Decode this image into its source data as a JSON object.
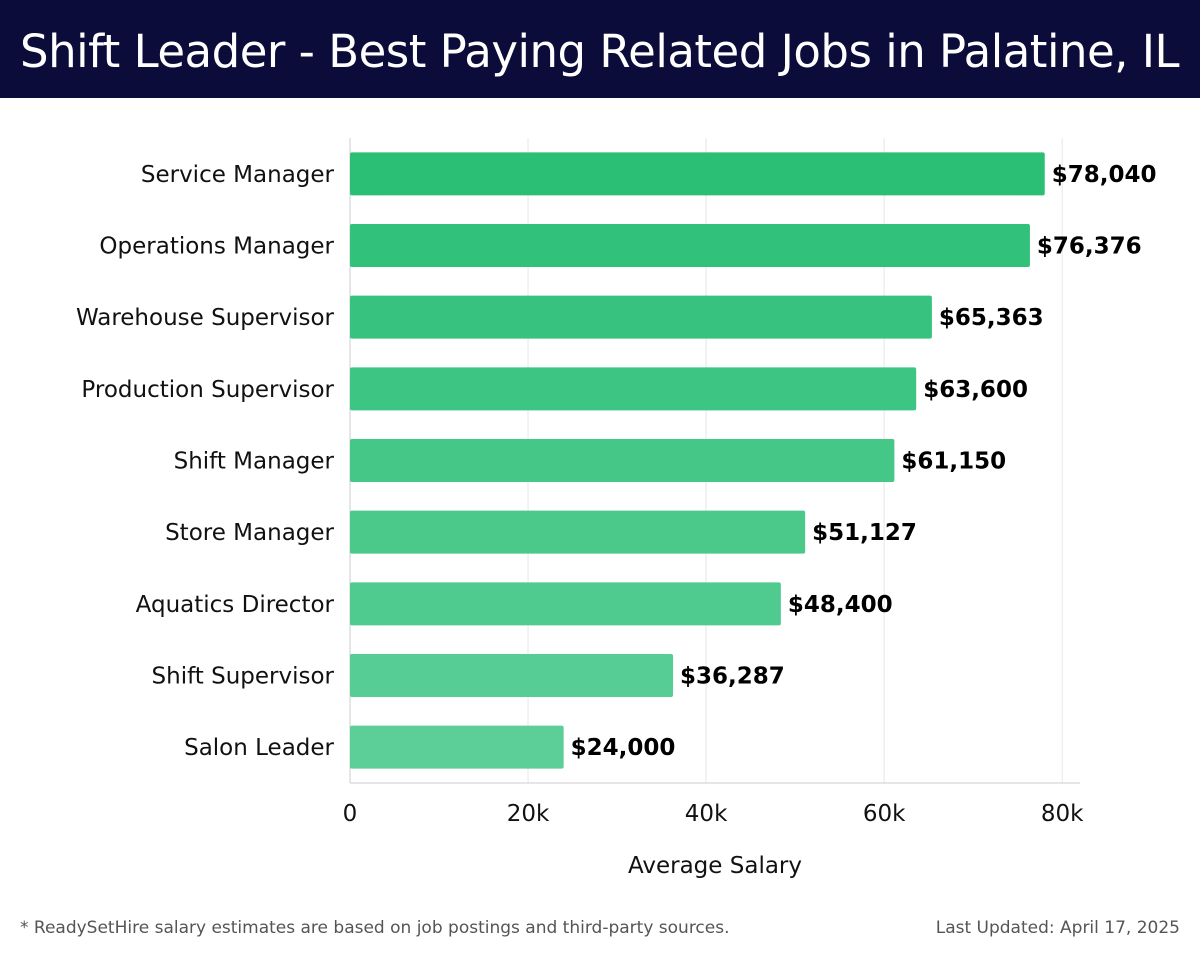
{
  "header": {
    "title": "Shift Leader - Best Paying Related Jobs in Palatine, IL"
  },
  "chart_data": {
    "type": "bar",
    "orientation": "horizontal",
    "categories": [
      "Service Manager",
      "Operations Manager",
      "Warehouse Supervisor",
      "Production Supervisor",
      "Shift Manager",
      "Store Manager",
      "Aquatics Director",
      "Shift Supervisor",
      "Salon Leader"
    ],
    "values": [
      78040,
      76376,
      65363,
      63600,
      61150,
      51127,
      48400,
      36287,
      24000
    ],
    "value_labels": [
      "$78,040",
      "$76,376",
      "$65,363",
      "$63,600",
      "$61,150",
      "$51,127",
      "$48,400",
      "$36,287",
      "$24,000"
    ],
    "xlabel": "Average Salary",
    "ylabel": "",
    "xlim": [
      0,
      82000
    ],
    "xticks": [
      0,
      20000,
      40000,
      60000,
      80000
    ],
    "xtick_labels": [
      "0",
      "20k",
      "40k",
      "60k",
      "80k"
    ],
    "grid": "vertical",
    "legend": "none",
    "colors": {
      "bar_top": "#2bbf76",
      "bar_bottom": "#5ccf98",
      "grid": "#e6e6e6",
      "axis": "#cccccc"
    }
  },
  "footer": {
    "note": "* ReadySetHire salary estimates are based on job postings and third-party sources.",
    "updated": "Last Updated: April 17, 2025"
  }
}
